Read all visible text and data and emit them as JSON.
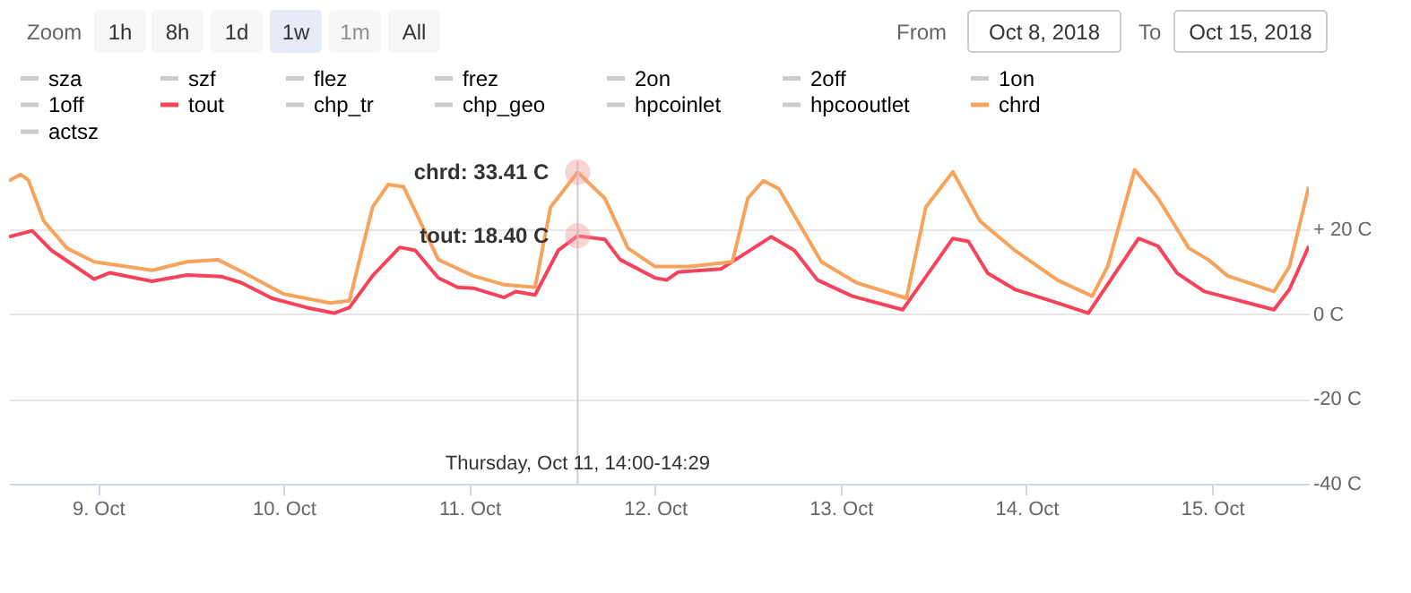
{
  "chart_data": {
    "type": "line",
    "xlim": [
      "2018-10-08T12:30",
      "2018-10-15T12:30"
    ],
    "xticks": [
      {
        "value": "2018-10-09",
        "label": "9. Oct"
      },
      {
        "value": "2018-10-10",
        "label": "10. Oct"
      },
      {
        "value": "2018-10-11",
        "label": "11. Oct"
      },
      {
        "value": "2018-10-12",
        "label": "12. Oct"
      },
      {
        "value": "2018-10-13",
        "label": "13. Oct"
      },
      {
        "value": "2018-10-14",
        "label": "14. Oct"
      },
      {
        "value": "2018-10-15",
        "label": "15. Oct"
      }
    ],
    "ylim": [
      -40,
      36
    ],
    "yticks": [
      {
        "value": -40,
        "label": "-40 C"
      },
      {
        "value": -20,
        "label": "-20 C"
      },
      {
        "value": 0,
        "label": "0 C"
      },
      {
        "value": 20,
        "label": "+ 20 C"
      }
    ],
    "grid": "y",
    "legend": "top",
    "marker": "none",
    "line_style": "solid",
    "series": [
      {
        "name": "sza",
        "color": "#cccccc"
      },
      {
        "name": "szf",
        "color": "#cccccc"
      },
      {
        "name": "flez",
        "color": "#cccccc"
      },
      {
        "name": "frez",
        "color": "#cccccc"
      },
      {
        "name": "2on",
        "color": "#cccccc"
      },
      {
        "name": "2off",
        "color": "#cccccc"
      },
      {
        "name": "1on",
        "color": "#cccccc"
      },
      {
        "name": "1off",
        "color": "#cccccc"
      },
      {
        "name": "tout",
        "color": "#f7435a",
        "x": [
          "2018-10-08T12:30",
          "2018-10-08T15:30",
          "2018-10-08T18:00",
          "2018-10-08T21:00",
          "2018-10-08T23:30",
          "2018-10-09T01:30",
          "2018-10-09T07:00",
          "2018-10-09T11:30",
          "2018-10-09T16:00",
          "2018-10-09T18:30",
          "2018-10-09T22:30",
          "2018-10-10T03:00",
          "2018-10-10T06:30",
          "2018-10-10T08:30",
          "2018-10-10T11:30",
          "2018-10-10T15:00",
          "2018-10-10T17:00",
          "2018-10-10T20:00",
          "2018-10-10T22:30",
          "2018-10-11T00:30",
          "2018-10-11T04:30",
          "2018-10-11T06:00",
          "2018-10-11T08:30",
          "2018-10-11T11:30",
          "2018-10-11T14:00",
          "2018-10-11T17:30",
          "2018-10-11T19:30",
          "2018-10-12T00:00",
          "2018-10-12T01:30",
          "2018-10-12T03:00",
          "2018-10-12T08:30",
          "2018-10-12T15:00",
          "2018-10-12T18:00",
          "2018-10-12T21:00",
          "2018-10-13T01:30",
          "2018-10-13T08:00",
          "2018-10-13T14:30",
          "2018-10-13T16:30",
          "2018-10-13T19:00",
          "2018-10-13T22:30",
          "2018-10-14T04:00",
          "2018-10-14T08:00",
          "2018-10-14T14:30",
          "2018-10-14T17:00",
          "2018-10-14T19:30",
          "2018-10-14T23:00",
          "2018-10-15T08:00",
          "2018-10-15T10:00",
          "2018-10-15T12:30"
        ],
        "values": [
          18.2,
          19.6,
          15,
          11.3,
          8.2,
          9.7,
          7.7,
          9.2,
          8.8,
          7.4,
          3.7,
          1.5,
          0.2,
          1.5,
          9,
          15.7,
          15,
          8.5,
          6.3,
          6.1,
          3.9,
          5.3,
          4.5,
          15,
          18.4,
          17.6,
          12.8,
          8.5,
          8,
          9.9,
          10.6,
          18.2,
          15,
          8,
          4.2,
          1,
          17.8,
          17.1,
          9.6,
          5.8,
          2.6,
          0.2,
          17.8,
          16,
          9.6,
          5.3,
          1,
          5.8,
          16
        ]
      },
      {
        "name": "chp_tr",
        "color": "#cccccc"
      },
      {
        "name": "chp_geo",
        "color": "#cccccc"
      },
      {
        "name": "hpcoinlet",
        "color": "#cccccc"
      },
      {
        "name": "hpcooutlet",
        "color": "#cccccc"
      },
      {
        "name": "chrd",
        "color": "#f7a35c",
        "x": [
          "2018-10-08T12:30",
          "2018-10-08T14:00",
          "2018-10-08T15:00",
          "2018-10-08T17:00",
          "2018-10-08T20:00",
          "2018-10-08T23:30",
          "2018-10-09T07:00",
          "2018-10-09T11:30",
          "2018-10-09T15:30",
          "2018-10-09T19:00",
          "2018-10-10T00:00",
          "2018-10-10T06:00",
          "2018-10-10T08:30",
          "2018-10-10T11:30",
          "2018-10-10T13:30",
          "2018-10-10T15:30",
          "2018-10-10T20:00",
          "2018-10-11T00:30",
          "2018-10-11T04:30",
          "2018-10-11T08:30",
          "2018-10-11T10:30",
          "2018-10-11T14:00",
          "2018-10-11T17:30",
          "2018-10-11T20:30",
          "2018-10-12T00:00",
          "2018-10-12T04:30",
          "2018-10-12T10:00",
          "2018-10-12T12:00",
          "2018-10-12T14:00",
          "2018-10-12T16:00",
          "2018-10-12T21:30",
          "2018-10-13T02:00",
          "2018-10-13T08:30",
          "2018-10-13T11:00",
          "2018-10-13T14:30",
          "2018-10-13T18:00",
          "2018-10-13T22:30",
          "2018-10-14T04:00",
          "2018-10-14T08:30",
          "2018-10-14T10:30",
          "2018-10-14T14:00",
          "2018-10-14T17:00",
          "2018-10-14T21:00",
          "2018-10-14T23:30",
          "2018-10-15T02:00",
          "2018-10-15T08:00",
          "2018-10-15T10:00",
          "2018-10-15T12:30"
        ],
        "values": [
          31.4,
          32.9,
          31.6,
          21.9,
          15.5,
          12.3,
          10.3,
          12.3,
          12.8,
          9.6,
          4.7,
          2.6,
          3.1,
          25.2,
          30.5,
          30,
          12.8,
          9,
          6.9,
          6.3,
          25.2,
          33.41,
          27.3,
          15.5,
          11.2,
          11.2,
          12.3,
          27.3,
          31.4,
          29.5,
          12.3,
          7.4,
          3.7,
          25.2,
          33.5,
          21.9,
          15,
          8,
          4.2,
          11.2,
          34,
          27.3,
          15.5,
          12.8,
          9,
          5.3,
          11.2,
          30
        ]
      },
      {
        "name": "actsz",
        "color": "#cccccc"
      }
    ],
    "ref_lines": [
      {
        "axis": "x",
        "value": "2018-10-11T14:00",
        "label": "Thursday, Oct 11, 14:00-14:29",
        "color": "#cccccc"
      }
    ],
    "annotations": [
      "Zoom",
      "1h",
      "8h",
      "1d",
      "1w",
      "1m",
      "All",
      "From",
      "Oct 8, 2018",
      "To",
      "Oct 15, 2018",
      {
        "text": "chrd: 33.41 C",
        "x": "2018-10-11T14:00",
        "y": 33.41
      },
      {
        "text": "tout: 18.40 C",
        "x": "2018-10-11T14:00",
        "y": 18.4
      }
    ]
  }
}
